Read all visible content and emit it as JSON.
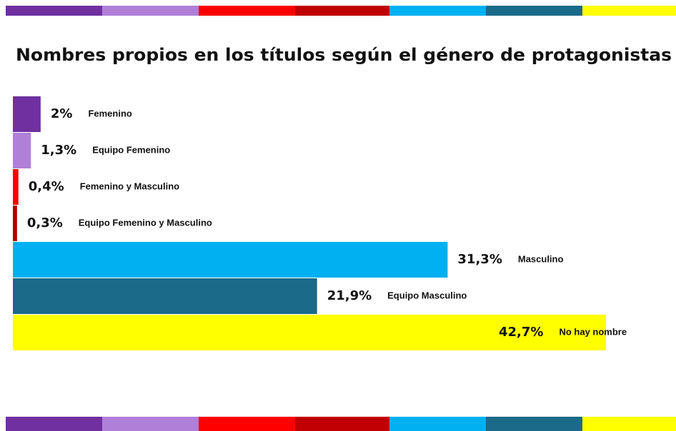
{
  "chart_data": {
    "type": "bar",
    "orientation": "horizontal",
    "title": "Nombres propios en los títulos según el género de protagonistas",
    "categories": [
      "Femenino",
      "Equipo Femenino",
      "Femenino y Masculino",
      "Equipo Femenino y Masculino",
      "Masculino",
      "Equipo Masculino",
      "No hay nombre"
    ],
    "values": [
      2,
      1.3,
      0.4,
      0.3,
      31.3,
      21.9,
      42.7
    ],
    "value_labels": [
      "2%",
      "1,3%",
      "0,4%",
      "0,3%",
      "31,3%",
      "21,9%",
      "42,7%"
    ],
    "colors": [
      "#7030a0",
      "#b07fd8",
      "#ff0000",
      "#b00000",
      "#00b0f0",
      "#1b6a8a",
      "#ffff00"
    ]
  }
}
